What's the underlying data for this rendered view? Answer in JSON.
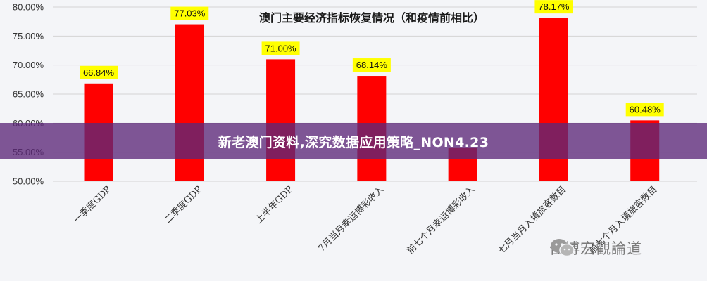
{
  "banner": {
    "text": "新老澳门资料,深究数据应用策略_NON4.23"
  },
  "watermark": {
    "text": "佳博宏觀論道",
    "icon": "wechat-icon"
  },
  "colors": {
    "bar": "#ff0000",
    "label_bg": "#ffff00",
    "axis_text": "#333333",
    "grid": "#d4d4d4"
  },
  "chart_data": {
    "type": "bar",
    "title": "澳门主要经济指标恢复情况（和疫情前相比）",
    "categories": [
      "一季度GDP",
      "二季度GDP",
      "上半年GDP",
      "7月当月幸运博彩收入",
      "前七个月幸运博彩收入",
      "七月当月入境旅客数目",
      "前七个月入境旅客数目"
    ],
    "values": [
      66.84,
      77.03,
      71.0,
      68.14,
      55.83,
      78.17,
      60.48
    ],
    "data_labels": [
      "66.84%",
      "77.03%",
      "71.00%",
      "68.14%",
      "",
      "78.17%",
      "60.48%"
    ],
    "ylim": [
      50,
      80
    ],
    "yticks": [
      "50.00%",
      "55.00%",
      "60.00%",
      "65.00%",
      "70.00%",
      "75.00%",
      "80.00%"
    ],
    "grid": true,
    "legend": "none"
  }
}
